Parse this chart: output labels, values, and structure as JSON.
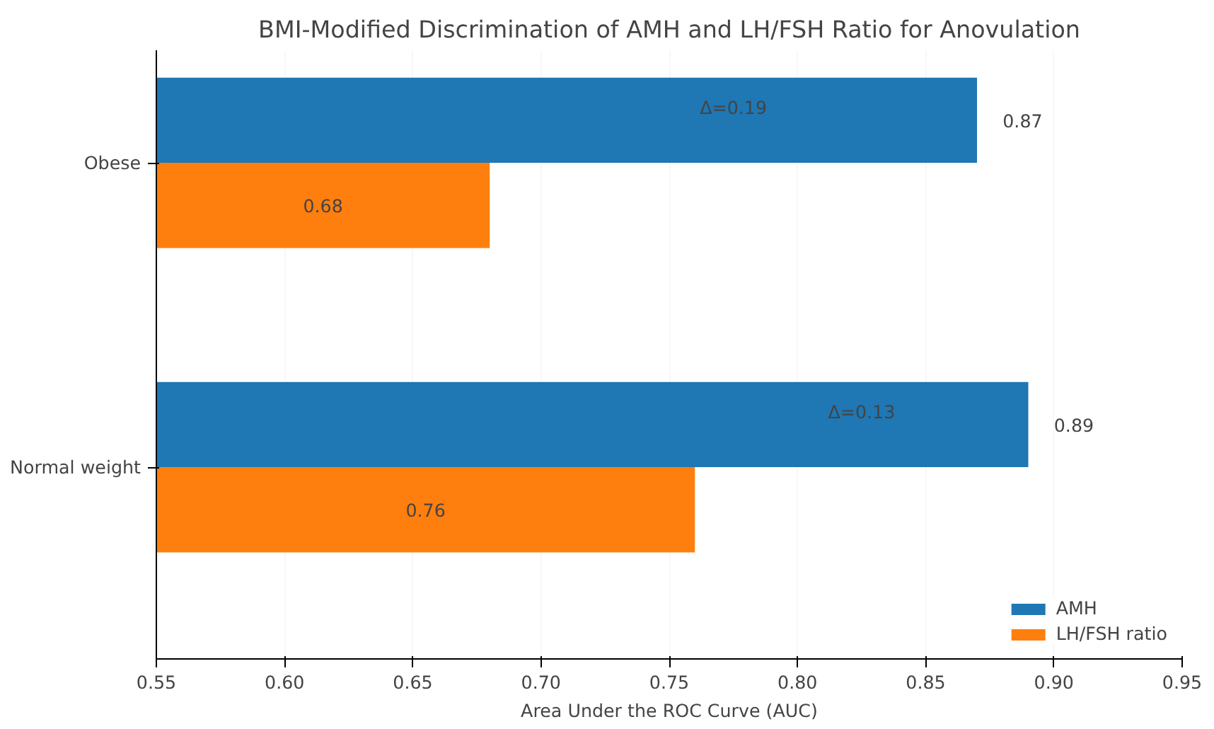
{
  "chart_data": {
    "type": "bar",
    "orientation": "horizontal",
    "title": "BMI-Modified Discrimination of AMH and LH/FSH Ratio for Anovulation",
    "xlabel": "Area Under the ROC Curve (AUC)",
    "categories": [
      "Obese",
      "Normal weight"
    ],
    "series": [
      {
        "name": "AMH",
        "color": "#1f77b4",
        "values": [
          0.87,
          0.89
        ]
      },
      {
        "name": "LH/FSH ratio",
        "color": "#ff7f0e",
        "values": [
          0.68,
          0.76
        ]
      }
    ],
    "xlim": [
      0.55,
      0.95
    ],
    "xticks": [
      0.55,
      {
        "value": 0.6,
        "label": "0.60"
      },
      0.65,
      {
        "value": 0.7,
        "label": "0.70"
      },
      0.75,
      {
        "value": 0.8,
        "label": "0.80"
      },
      0.85,
      {
        "value": 0.9,
        "label": "0.90"
      },
      0.95
    ],
    "grid": "x",
    "legend": "bottom right",
    "data_labels": true,
    "annotations": [
      {
        "text": "Δ=0.19",
        "x": 0.775,
        "y": "Obese"
      },
      {
        "text": "Δ=0.13",
        "x": 0.825,
        "y": "Normal weight"
      }
    ]
  }
}
